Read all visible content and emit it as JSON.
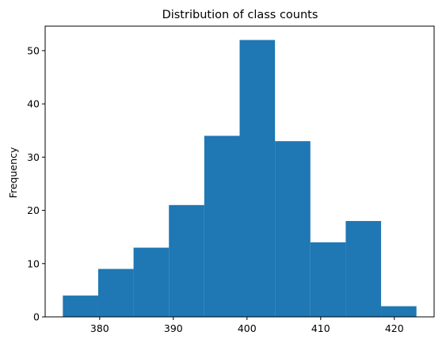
{
  "chart_data": {
    "type": "bar",
    "title": "Distribution of class counts",
    "xlabel": "",
    "ylabel": "Frequency",
    "bin_edges": [
      375.0,
      379.8,
      384.6,
      389.4,
      394.2,
      399.0,
      403.8,
      408.6,
      413.4,
      418.2,
      423.0
    ],
    "values": [
      4,
      9,
      13,
      21,
      34,
      52,
      33,
      14,
      18,
      2
    ],
    "xlim": [
      372.6,
      425.4
    ],
    "ylim": [
      0,
      54.6
    ],
    "xticks": [
      380,
      390,
      400,
      410,
      420
    ],
    "yticks": [
      0,
      10,
      20,
      30,
      40,
      50
    ],
    "grid": false,
    "bar_color": "#1f77b4"
  }
}
